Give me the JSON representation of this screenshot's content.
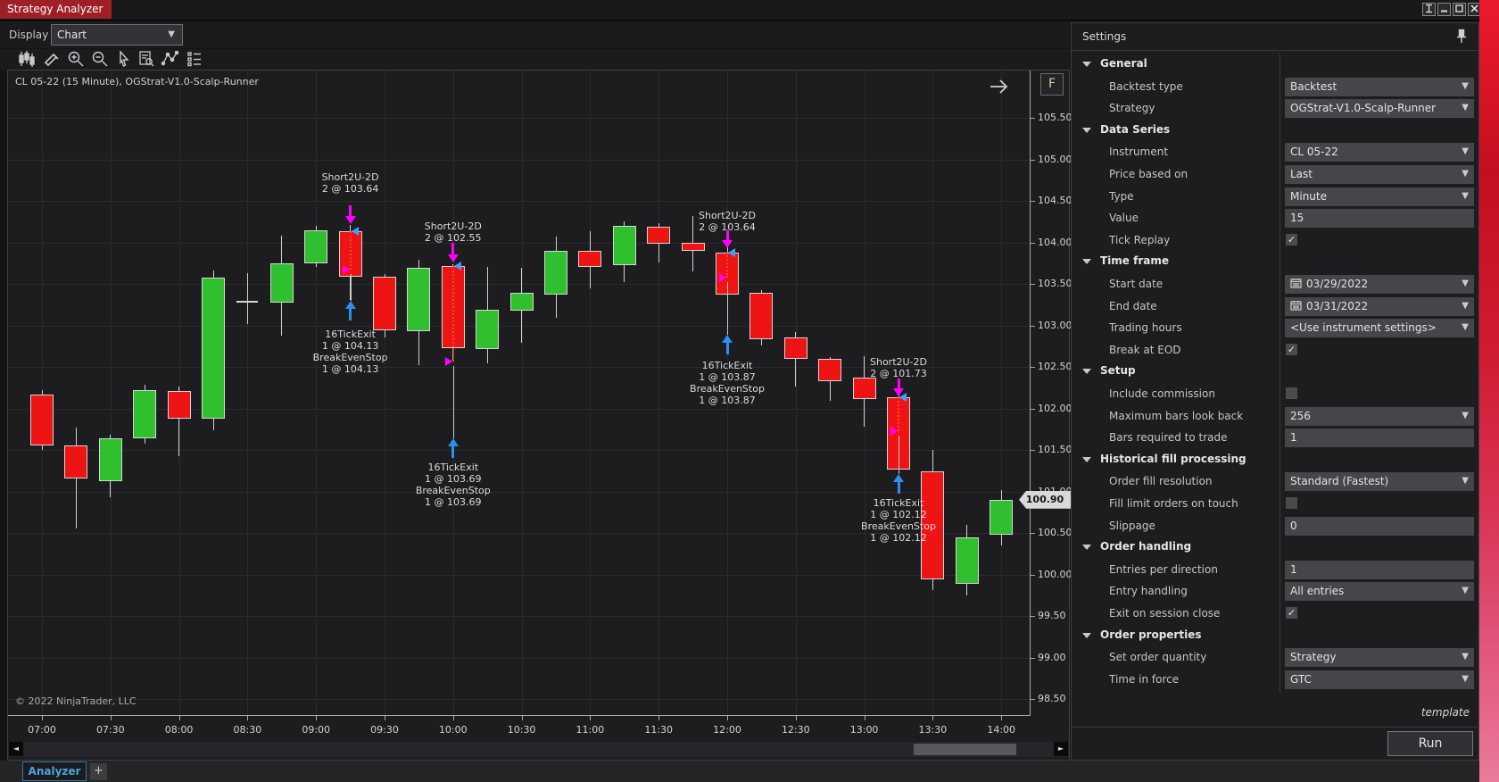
{
  "window": {
    "title": "Strategy Analyzer",
    "buttons": [
      "link-icon",
      "minimize-icon",
      "maximize-icon",
      "close-icon"
    ]
  },
  "display": {
    "label": "Display",
    "value": "Chart"
  },
  "toolbar_icons": [
    "chart-type-icon",
    "draw-icon",
    "zoom-in-icon",
    "zoom-out-icon",
    "cursor-icon",
    "data-box-icon",
    "indicator-icon",
    "properties-icon"
  ],
  "tabs": {
    "analyzer": "Analyzer",
    "add": "+"
  },
  "colors": {
    "up": "#2fbf2f",
    "down": "#ee1414",
    "doji": "#d6d6d6",
    "entry_arrow": "#ff00ff",
    "exit_arrow": "#2f8fef",
    "entry_marker": "#3da0ff",
    "exit_marker": "#ff00ff",
    "tab_accent": "#9e2026",
    "analyzer_tab": "#4da2e0"
  },
  "chart_data": {
    "type": "candlestick",
    "title": "CL 05-22 (15 Minute), OGStrat-V1.0-Scalp-Runner",
    "copyright": "© 2022 NinjaTrader, LLC",
    "f_button": "F",
    "last_price": "100.90",
    "ylim": [
      98.5,
      105.5
    ],
    "y_ticks": [
      "105.50",
      "105.00",
      "104.50",
      "104.00",
      "103.50",
      "103.00",
      "102.50",
      "102.00",
      "101.50",
      "101.00",
      "100.50",
      "100.00",
      "99.50",
      "99.00",
      "98.50"
    ],
    "x_labels": [
      "07:00",
      "07:30",
      "08:00",
      "08:30",
      "09:00",
      "09:30",
      "10:00",
      "10:30",
      "11:00",
      "11:30",
      "12:00",
      "12:30",
      "13:00",
      "13:30",
      "14:00"
    ],
    "candles": [
      {
        "time": "07:00",
        "o": 102.17,
        "h": 102.22,
        "l": 101.5,
        "c": 101.55
      },
      {
        "time": "07:15",
        "o": 101.55,
        "h": 101.77,
        "l": 100.55,
        "c": 101.16
      },
      {
        "time": "07:30",
        "o": 101.12,
        "h": 101.68,
        "l": 100.93,
        "c": 101.64
      },
      {
        "time": "07:45",
        "o": 101.64,
        "h": 102.28,
        "l": 101.58,
        "c": 102.22
      },
      {
        "time": "08:00",
        "o": 102.21,
        "h": 102.26,
        "l": 101.43,
        "c": 101.88
      },
      {
        "time": "08:15",
        "o": 101.88,
        "h": 103.66,
        "l": 101.74,
        "c": 103.58
      },
      {
        "time": "08:30",
        "o": 103.29,
        "h": 103.63,
        "l": 103.02,
        "c": 103.29
      },
      {
        "time": "08:45",
        "o": 103.27,
        "h": 104.08,
        "l": 102.88,
        "c": 103.75
      },
      {
        "time": "09:00",
        "o": 103.75,
        "h": 104.2,
        "l": 103.7,
        "c": 104.15
      },
      {
        "time": "09:15",
        "o": 104.13,
        "h": 104.21,
        "l": 103.31,
        "c": 103.59
      },
      {
        "time": "09:30",
        "o": 103.59,
        "h": 103.62,
        "l": 102.86,
        "c": 102.94
      },
      {
        "time": "09:45",
        "o": 102.93,
        "h": 103.79,
        "l": 102.52,
        "c": 103.69
      },
      {
        "time": "10:00",
        "o": 103.71,
        "h": 103.74,
        "l": 102.56,
        "c": 102.73
      },
      {
        "time": "10:15",
        "o": 102.71,
        "h": 103.7,
        "l": 102.54,
        "c": 103.19
      },
      {
        "time": "10:30",
        "o": 103.18,
        "h": 103.69,
        "l": 102.79,
        "c": 103.39
      },
      {
        "time": "10:45",
        "o": 103.37,
        "h": 104.07,
        "l": 103.09,
        "c": 103.9
      },
      {
        "time": "11:00",
        "o": 103.9,
        "h": 104.13,
        "l": 103.45,
        "c": 103.7
      },
      {
        "time": "11:15",
        "o": 103.73,
        "h": 104.25,
        "l": 103.52,
        "c": 104.2
      },
      {
        "time": "11:30",
        "o": 104.19,
        "h": 104.23,
        "l": 103.76,
        "c": 103.98
      },
      {
        "time": "11:45",
        "o": 103.99,
        "h": 104.32,
        "l": 103.65,
        "c": 103.9
      },
      {
        "time": "12:00",
        "o": 103.88,
        "h": 103.97,
        "l": 103.35,
        "c": 103.37
      },
      {
        "time": "12:15",
        "o": 103.39,
        "h": 103.42,
        "l": 102.76,
        "c": 102.83
      },
      {
        "time": "12:30",
        "o": 102.85,
        "h": 102.92,
        "l": 102.26,
        "c": 102.6
      },
      {
        "time": "12:45",
        "o": 102.6,
        "h": 102.62,
        "l": 102.09,
        "c": 102.33
      },
      {
        "time": "13:00",
        "o": 102.37,
        "h": 102.63,
        "l": 101.78,
        "c": 102.11
      },
      {
        "time": "13:15",
        "o": 102.13,
        "h": 102.24,
        "l": 101.24,
        "c": 101.26
      },
      {
        "time": "13:30",
        "o": 101.24,
        "h": 101.5,
        "l": 99.81,
        "c": 99.94
      },
      {
        "time": "13:45",
        "o": 99.89,
        "h": 100.6,
        "l": 99.75,
        "c": 100.45
      },
      {
        "time": "14:00",
        "o": 100.48,
        "h": 101.02,
        "l": 100.35,
        "c": 100.9
      }
    ],
    "trades": [
      {
        "candle": 9,
        "entry_lines": "Short2U-2D\n2 @ 103.64",
        "exit_lines": "16TickExit\n1 @ 104.13\nBreakEvenStop\n1 @ 104.13",
        "entry_text": 104.85,
        "arrow_tail": 104.45,
        "arrow_tip": 104.22,
        "entry_marker": 104.13,
        "exit_marker": 103.67,
        "exit_tip": 103.3,
        "exit_text": 102.96
      },
      {
        "candle": 12,
        "entry_lines": "Short2U-2D\n2 @ 102.55",
        "exit_lines": "16TickExit\n1 @ 103.69\nBreakEvenStop\n1 @ 103.69",
        "entry_text": 104.26,
        "arrow_tail": 103.99,
        "arrow_tip": 103.76,
        "entry_marker": 103.71,
        "exit_marker": 102.56,
        "exit_tip": 101.64,
        "exit_text": 101.36
      },
      {
        "candle": 20,
        "entry_lines": "Short2U-2D\n2 @ 103.64",
        "exit_lines": "16TickExit\n1 @ 103.87\nBreakEvenStop\n1 @ 103.87",
        "entry_text": 104.39,
        "arrow_tail": 104.14,
        "arrow_tip": 103.93,
        "entry_marker": 103.88,
        "exit_marker": 103.58,
        "exit_tip": 102.89,
        "exit_text": 102.59
      },
      {
        "candle": 25,
        "entry_lines": "Short2U-2D\n2 @ 101.73",
        "exit_lines": "16TickExit\n1 @ 102.12\nBreakEvenStop\n1 @ 102.12",
        "entry_text": 102.63,
        "arrow_tail": 102.36,
        "arrow_tip": 102.15,
        "entry_marker": 102.13,
        "exit_marker": 101.73,
        "exit_tip": 101.21,
        "exit_text": 100.93
      }
    ]
  },
  "settings": {
    "title": "Settings",
    "sections": [
      {
        "label": "General",
        "rows": [
          {
            "label": "Backtest type",
            "control": "dropdown",
            "value": "Backtest"
          },
          {
            "label": "Strategy",
            "control": "dropdown",
            "value": "OGStrat-V1.0-Scalp-Runner"
          }
        ]
      },
      {
        "label": "Data Series",
        "rows": [
          {
            "label": "Instrument",
            "control": "dropdown",
            "value": "CL 05-22"
          },
          {
            "label": "Price based on",
            "control": "dropdown",
            "value": "Last"
          },
          {
            "label": "Type",
            "control": "dropdown",
            "value": "Minute"
          },
          {
            "label": "Value",
            "control": "input",
            "value": "15"
          },
          {
            "label": "Tick Replay",
            "control": "checkbox",
            "checked": true
          }
        ]
      },
      {
        "label": "Time frame",
        "rows": [
          {
            "label": "Start date",
            "control": "date",
            "value": "03/29/2022"
          },
          {
            "label": "End date",
            "control": "date",
            "value": "03/31/2022"
          },
          {
            "label": "Trading hours",
            "control": "dropdown",
            "value": "<Use instrument settings>"
          },
          {
            "label": "Break at EOD",
            "control": "checkbox",
            "checked": true
          }
        ]
      },
      {
        "label": "Setup",
        "rows": [
          {
            "label": "Include commission",
            "control": "checkbox",
            "checked": false
          },
          {
            "label": "Maximum bars look back",
            "control": "dropdown",
            "value": "256"
          },
          {
            "label": "Bars required to trade",
            "control": "input",
            "value": "1"
          }
        ]
      },
      {
        "label": "Historical fill processing",
        "rows": [
          {
            "label": "Order fill resolution",
            "control": "dropdown",
            "value": "Standard (Fastest)"
          },
          {
            "label": "Fill limit orders on touch",
            "control": "checkbox",
            "checked": false
          },
          {
            "label": "Slippage",
            "control": "input",
            "value": "0"
          }
        ]
      },
      {
        "label": "Order handling",
        "rows": [
          {
            "label": "Entries per direction",
            "control": "input",
            "value": "1"
          },
          {
            "label": "Entry handling",
            "control": "dropdown",
            "value": "All entries"
          },
          {
            "label": "Exit on session close",
            "control": "checkbox",
            "checked": true
          }
        ]
      },
      {
        "label": "Order properties",
        "rows": [
          {
            "label": "Set order quantity",
            "control": "dropdown",
            "value": "Strategy"
          },
          {
            "label": "Time in force",
            "control": "dropdown",
            "value": "GTC"
          }
        ]
      }
    ],
    "template_link": "template",
    "run_button": "Run"
  }
}
